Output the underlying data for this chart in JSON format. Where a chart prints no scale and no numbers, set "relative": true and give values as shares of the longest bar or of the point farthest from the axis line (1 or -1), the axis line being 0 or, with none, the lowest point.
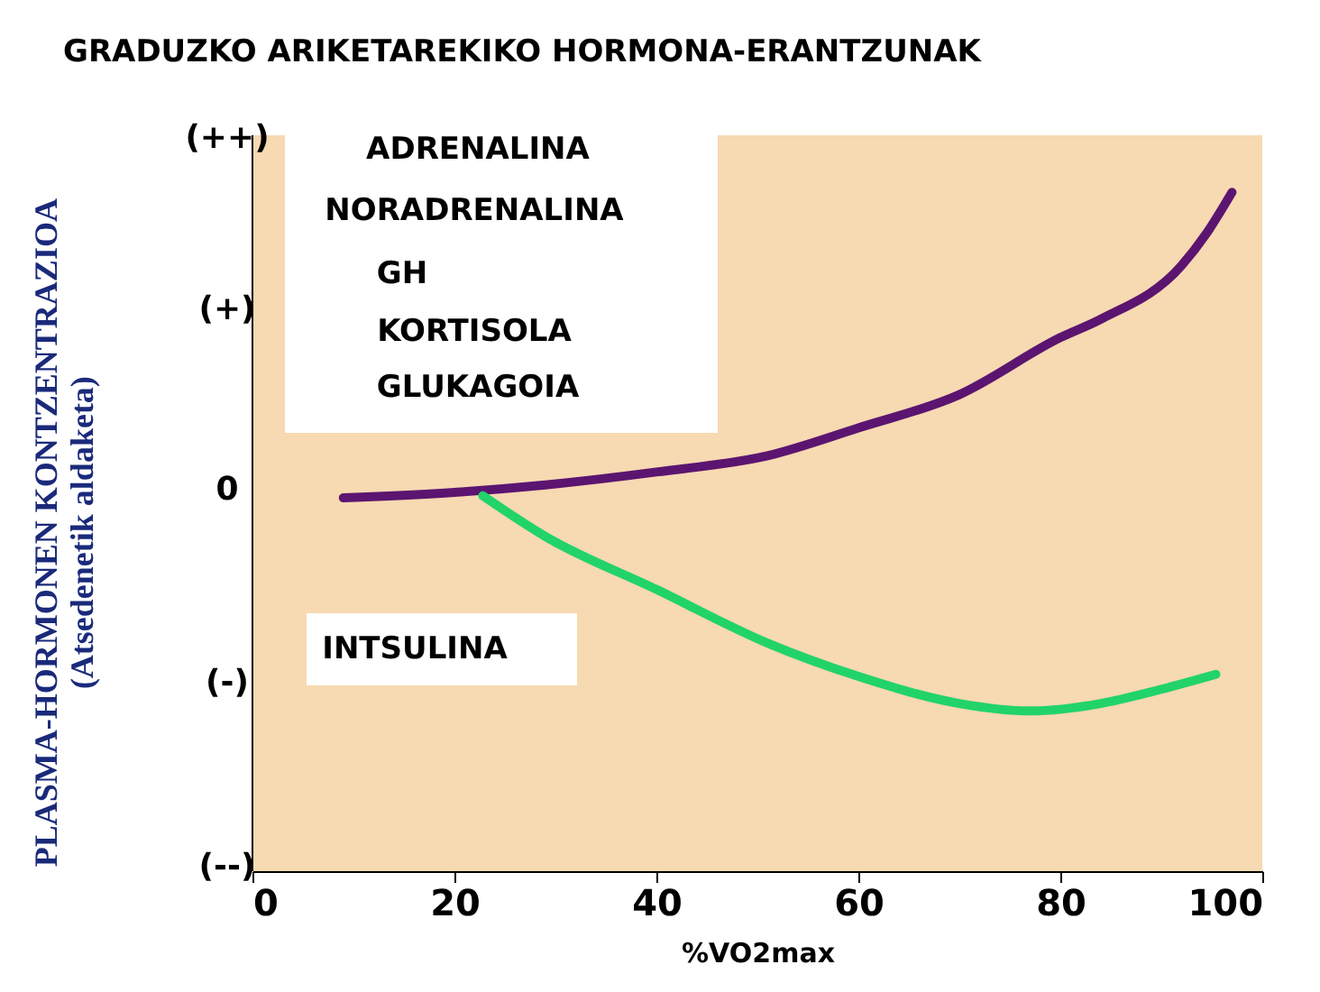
{
  "chart_data": {
    "type": "line",
    "title": "GRADUZKO ARIKETAREKIKO HORMONA-ERANTZUNAK",
    "xlabel": "%VO2max",
    "ylabel": "PLASMA-HORMONEN KONTZENTRAZIOA\n(Atsedenetik aldaketa)",
    "xlim": [
      0,
      100
    ],
    "xticks": [
      0,
      20,
      40,
      60,
      80,
      100
    ],
    "relative": true,
    "grid": false,
    "marker": "none",
    "line_style": "solid",
    "annotations": [
      "ADRENALINA",
      "NORADRENALINA",
      "GH",
      "KORTISOLA",
      "GLUKAGOIA",
      "INTSULINA",
      "(++)",
      "(+)",
      "0",
      "(-)",
      "(--)"
    ],
    "series": [
      {
        "color": "#5b1570",
        "x": [
          9,
          20,
          29,
          40,
          51,
          60,
          70,
          80,
          84,
          92,
          94.5,
          97
        ],
        "values": [
          0.55,
          0.558,
          0.569,
          0.588,
          0.612,
          0.653,
          0.702,
          0.786,
          0.813,
          0.892,
          0.94,
          1
        ]
      },
      {
        "color": "#22d36a",
        "x": [
          22.8,
          29,
          40,
          51,
          60,
          70,
          77,
          84,
          90,
          95.4
        ],
        "values": [
          0.553,
          0.493,
          0.415,
          0.336,
          0.287,
          0.247,
          0.236,
          0.247,
          0.268,
          0.29
        ]
      }
    ]
  }
}
